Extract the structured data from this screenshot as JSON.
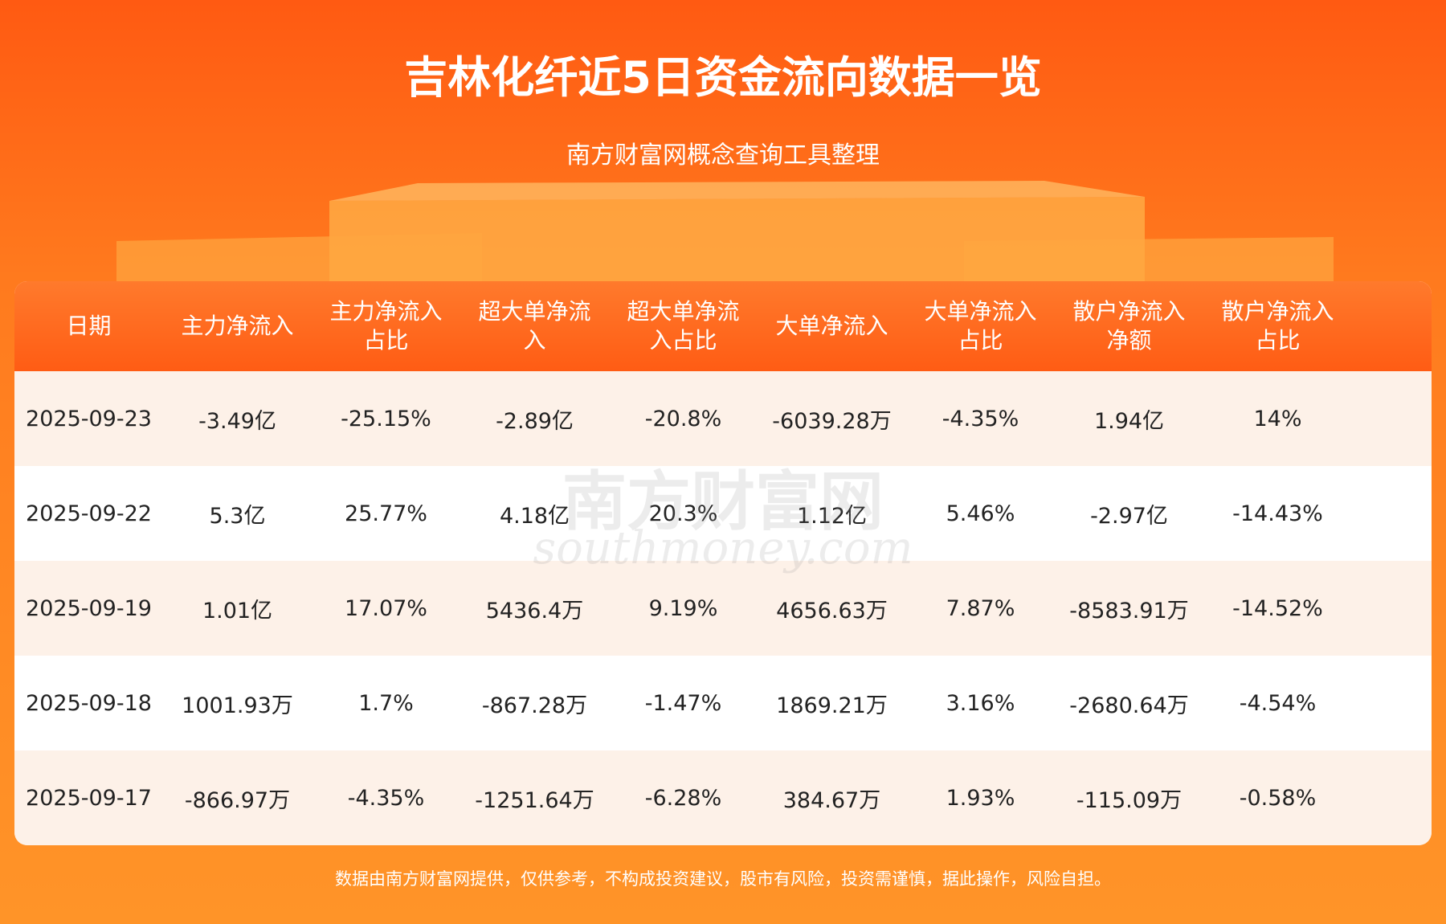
{
  "header": {
    "title": "吉林化纤近5日资金流向数据一览",
    "subtitle": "南方财富网概念查询工具整理"
  },
  "watermark": {
    "cn": "南方财富网",
    "en": "southmoney.com"
  },
  "table": {
    "columns": [
      "日期",
      "主力净流入",
      "主力净流入占比",
      "超大单净流入",
      "超大单净流入占比",
      "大单净流入",
      "大单净流入占比",
      "散户净流入净额",
      "散户净流入占比"
    ],
    "rows": [
      [
        "2025-09-23",
        "-3.49亿",
        "-25.15%",
        "-2.89亿",
        "-20.8%",
        "-6039.28万",
        "-4.35%",
        "1.94亿",
        "14%"
      ],
      [
        "2025-09-22",
        "5.3亿",
        "25.77%",
        "4.18亿",
        "20.3%",
        "1.12亿",
        "5.46%",
        "-2.97亿",
        "-14.43%"
      ],
      [
        "2025-09-19",
        "1.01亿",
        "17.07%",
        "5436.4万",
        "9.19%",
        "4656.63万",
        "7.87%",
        "-8583.91万",
        "-14.52%"
      ],
      [
        "2025-09-18",
        "1001.93万",
        "1.7%",
        "-867.28万",
        "-1.47%",
        "1869.21万",
        "3.16%",
        "-2680.64万",
        "-4.54%"
      ],
      [
        "2025-09-17",
        "-866.97万",
        "-4.35%",
        "-1251.64万",
        "-6.28%",
        "384.67万",
        "1.93%",
        "-115.09万",
        "-0.58%"
      ]
    ]
  },
  "footer": {
    "disclaimer": "数据由南方财富网提供，仅供参考，不构成投资建议，股市有风险，投资需谨慎，据此操作，风险自担。"
  }
}
